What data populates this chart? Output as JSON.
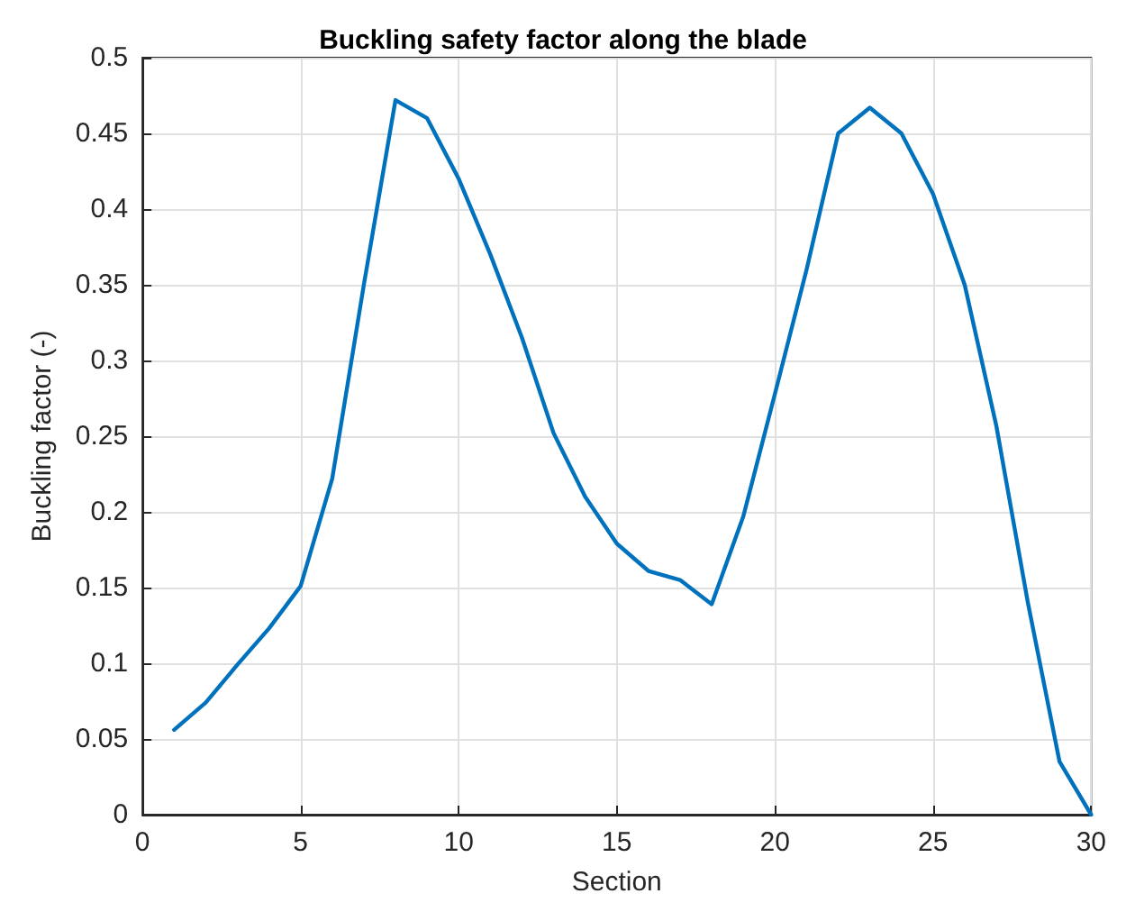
{
  "chart_data": {
    "type": "line",
    "title": "Buckling safety factor along the blade",
    "xlabel": "Section",
    "ylabel": "Buckling factor (-)",
    "x": [
      1,
      2,
      3,
      4,
      5,
      6,
      7,
      8,
      9,
      10,
      11,
      12,
      13,
      14,
      15,
      16,
      17,
      18,
      19,
      20,
      21,
      22,
      23,
      24,
      25,
      26,
      27,
      28,
      29,
      30
    ],
    "series": [
      {
        "color": "#0072bd",
        "values": [
          0.056,
          0.074,
          0.099,
          0.123,
          0.151,
          0.222,
          0.35,
          0.472,
          0.46,
          0.42,
          0.37,
          0.315,
          0.252,
          0.21,
          0.179,
          0.161,
          0.155,
          0.139,
          0.197,
          0.278,
          0.36,
          0.45,
          0.467,
          0.45,
          0.41,
          0.35,
          0.257,
          0.14,
          0.035,
          0.0
        ]
      }
    ],
    "xlim": [
      0,
      30
    ],
    "xticks": [
      0,
      5,
      10,
      15,
      20,
      25,
      30
    ],
    "ylim": [
      0,
      0.5
    ],
    "yticks": [
      0,
      0.05,
      0.1,
      0.15,
      0.2,
      0.25,
      0.3,
      0.35,
      0.4,
      0.45,
      0.5
    ],
    "grid": true,
    "marker": "none",
    "line_style": "solid"
  }
}
